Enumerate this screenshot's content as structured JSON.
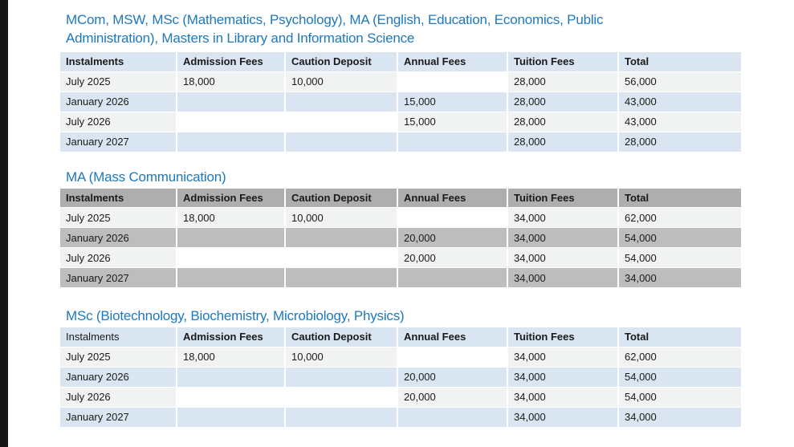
{
  "colors": {
    "heading_blue": "#1e78bc",
    "table_blue": "#d9e5f1",
    "light_row": "#f1f2f2",
    "gray_header": "#aeaeae",
    "gray_band": "#bdbdbd",
    "left_bar": "#161616",
    "text": "#1a1a1a"
  },
  "sections": [
    {
      "heading": "MCom, MSW, MSc (Mathematics, Psychology), MA (English, Education, Economics, Public Administration), Masters in Library and Information Science",
      "theme": "blue",
      "columns": [
        "Instalments",
        "Admission Fees",
        "Caution Deposit",
        "Annual Fees",
        "Tuition Fees",
        "Total"
      ],
      "plain_header_columns": [],
      "rows": [
        {
          "band": false,
          "cells": [
            "July 2025",
            "18,000",
            "10,000",
            "",
            "28,000",
            "56,000"
          ]
        },
        {
          "band": true,
          "cells": [
            "January 2026",
            "",
            "",
            "15,000",
            "28,000",
            "43,000"
          ]
        },
        {
          "band": false,
          "cells": [
            "July 2026",
            "",
            "",
            "15,000",
            "28,000",
            "43,000"
          ]
        },
        {
          "band": true,
          "cells": [
            "January 2027",
            "",
            "",
            "",
            "28,000",
            "28,000"
          ]
        }
      ]
    },
    {
      "heading": "MA (Mass Communication)",
      "theme": "gray",
      "columns": [
        "Instalments",
        "Admission Fees",
        "Caution Deposit",
        "Annual Fees",
        "Tuition Fees",
        "Total"
      ],
      "plain_header_columns": [],
      "rows": [
        {
          "band": false,
          "cells": [
            "July 2025",
            "18,000",
            "10,000",
            "",
            "34,000",
            "62,000"
          ]
        },
        {
          "band": true,
          "cells": [
            "January 2026",
            "",
            "",
            "20,000",
            "34,000",
            "54,000"
          ]
        },
        {
          "band": false,
          "cells": [
            "July 2026",
            "",
            "",
            "20,000",
            "34,000",
            "54,000"
          ]
        },
        {
          "band": true,
          "cells": [
            "January 2027",
            "",
            "",
            "",
            "34,000",
            "34,000"
          ]
        }
      ]
    },
    {
      "heading": "MSc (Biotechnology, Biochemistry, Microbiology, Physics)",
      "theme": "blue",
      "columns": [
        "Instalments",
        "Admission Fees",
        "Caution Deposit",
        "Annual Fees",
        "Tuition Fees",
        "Total"
      ],
      "plain_header_columns": [
        0
      ],
      "rows": [
        {
          "band": false,
          "cells": [
            "July 2025",
            "18,000",
            "10,000",
            "",
            "34,000",
            "62,000"
          ]
        },
        {
          "band": true,
          "cells": [
            "January 2026",
            "",
            "",
            "20,000",
            "34,000",
            "54,000"
          ]
        },
        {
          "band": false,
          "cells": [
            "July 2026",
            "",
            "",
            "20,000",
            "34,000",
            "54,000"
          ]
        },
        {
          "band": true,
          "cells": [
            "January 2027",
            "",
            "",
            "",
            "34,000",
            "34,000"
          ]
        }
      ]
    }
  ]
}
